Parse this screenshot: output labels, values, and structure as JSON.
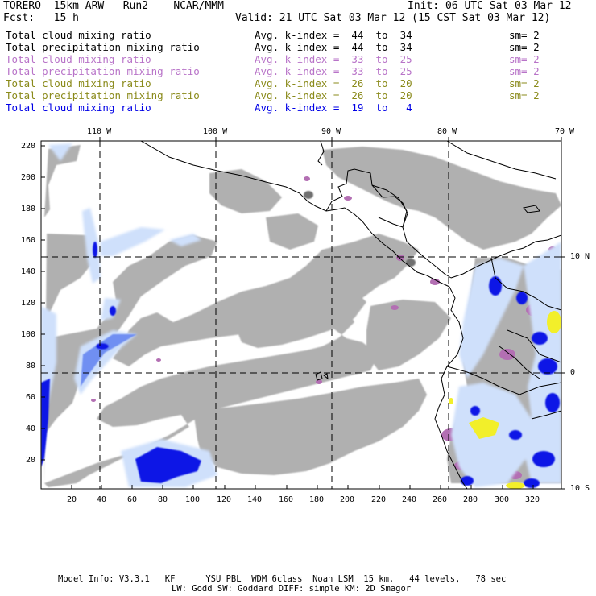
{
  "header": {
    "model": "TORERO  15km ARW   Run2    NCAR/MMM",
    "init": "Init: 06 UTC Sat 03 Mar 12",
    "fcst": "Fcst:   15 h",
    "valid": "Valid: 21 UTC Sat 03 Mar 12 (15 CST Sat 03 Mar 12)"
  },
  "legend": [
    {
      "field": "Total cloud mixing ratio",
      "index": "Avg. k-index =  44  to  34",
      "sm": "sm= 2",
      "color": "#000000"
    },
    {
      "field": "Total precipitation mixing ratio",
      "index": "Avg. k-index =  44  to  34",
      "sm": "sm= 2",
      "color": "#000000"
    },
    {
      "field": "Total cloud mixing ratio",
      "index": "Avg. k-index =  33  to  25",
      "sm": "sm= 2",
      "color": "#b873c8"
    },
    {
      "field": "Total precipitation mixing ratio",
      "index": "Avg. k-index =  33  to  25",
      "sm": "sm= 2",
      "color": "#b873c8"
    },
    {
      "field": "Total cloud mixing ratio",
      "index": "Avg. k-index =  26  to  20",
      "sm": "sm= 2",
      "color": "#8a8a1a"
    },
    {
      "field": "Total precipitation mixing ratio",
      "index": "Avg. k-index =  26  to  20",
      "sm": "sm= 2",
      "color": "#8a8a1a"
    },
    {
      "field": "Total cloud mixing ratio",
      "index": "Avg. k-index =  19  to   4",
      "sm": "",
      "color": "#0000e6"
    }
  ],
  "axes": {
    "top_longitudes": [
      "110 W",
      "100 W",
      "90 W",
      "80 W",
      "70 W"
    ],
    "right_latitudes": [
      "10 N",
      "0",
      "10 S"
    ],
    "left_ticks": [
      "220",
      "200",
      "180",
      "160",
      "140",
      "120",
      "100",
      "80",
      "60",
      "40",
      "20"
    ],
    "bottom_ticks": [
      "20",
      "40",
      "60",
      "80",
      "100",
      "120",
      "140",
      "160",
      "180",
      "200",
      "220",
      "240",
      "260",
      "280",
      "300",
      "320"
    ]
  },
  "footer": {
    "line1": "Model Info: V3.3.1   KF      YSU PBL  WDM 6class  Noah LSM  15 km,   44 levels,   78 sec",
    "line2": "LW: Godd SW: Goddard DIFF: simple KM: 2D Smagor"
  },
  "colors": {
    "cloud_gray": "#b0b0b0",
    "cloud_dark": "#707070",
    "purple": "#b36fb3",
    "blue_light": "#cfe0fb",
    "blue_mid": "#6f8ff2",
    "blue_dark": "#0a14e6",
    "yellow": "#f2ef2a",
    "coast": "#000000",
    "frame": "#000000"
  }
}
